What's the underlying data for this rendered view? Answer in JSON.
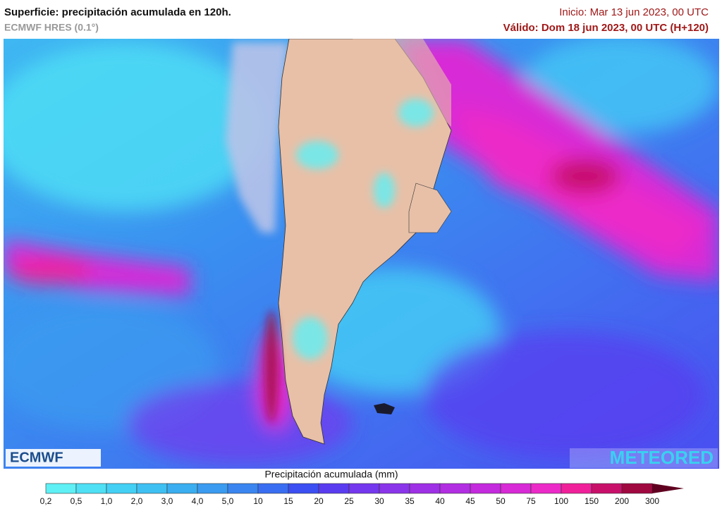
{
  "header": {
    "title": "Superficie: precipitación acumulada en 120h.",
    "subtitle": "ECMWF HRES (0.1°)",
    "init": "Inicio: Mar 13 jun 2023, 00 UTC",
    "valid": "Válido: Dom 18 jun 2023, 00 UTC (H+120)"
  },
  "logos": {
    "left": "ECMWF",
    "right": "METEORED"
  },
  "legend": {
    "title": "Precipitación acumulada (mm)",
    "ticks": [
      "0,2",
      "0,5",
      "1,0",
      "2,0",
      "3,0",
      "4,0",
      "5,0",
      "10",
      "15",
      "20",
      "25",
      "30",
      "35",
      "40",
      "45",
      "50",
      "75",
      "100",
      "150",
      "200",
      "300"
    ],
    "colors": [
      "#5ef0f5",
      "#4fe0f5",
      "#44d0f5",
      "#3fc0f3",
      "#3aaef0",
      "#3a9bf0",
      "#3a85f0",
      "#3a6ef2",
      "#3b4ff2",
      "#5a3cf0",
      "#7438ee",
      "#8a35ea",
      "#9e30e6",
      "#b22ee2",
      "#c42ade",
      "#d82ad6",
      "#ec2ac8",
      "#f0209a",
      "#c8106a",
      "#a00840",
      "#600020"
    ]
  }
}
